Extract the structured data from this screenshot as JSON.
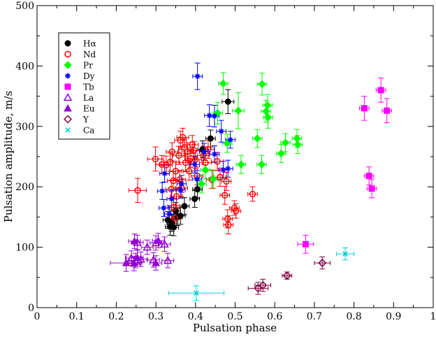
{
  "chart_data": {
    "type": "scatter",
    "xlabel": "Pulsation phase",
    "ylabel": "Pulsation amplitude, m/s",
    "xlim": [
      0,
      1
    ],
    "ylim": [
      0,
      500
    ],
    "xticks": [
      "0",
      "0.1",
      "0.2",
      "0.3",
      "0.4",
      "0.5",
      "0.6",
      "0.7",
      "0.8",
      "0.9",
      "1"
    ],
    "yticks": [
      "0",
      "100",
      "200",
      "300",
      "400",
      "500"
    ],
    "grid": false,
    "legend_position": "top-left",
    "series": [
      {
        "name": "Hα",
        "marker": "circle-filled",
        "color": "#000000",
        "errcolor": "#000000",
        "points": [
          {
            "x": 0.482,
            "y": 341,
            "ex": 0.015,
            "ey": 20
          },
          {
            "x": 0.438,
            "y": 280,
            "ex": 0.012,
            "ey": 14
          },
          {
            "x": 0.418,
            "y": 262,
            "ex": 0.012,
            "ey": 14
          },
          {
            "x": 0.398,
            "y": 180,
            "ex": 0.012,
            "ey": 14
          },
          {
            "x": 0.405,
            "y": 196,
            "ex": 0.012,
            "ey": 14
          },
          {
            "x": 0.372,
            "y": 168,
            "ex": 0.012,
            "ey": 14
          },
          {
            "x": 0.35,
            "y": 160,
            "ex": 0.012,
            "ey": 14
          },
          {
            "x": 0.355,
            "y": 150,
            "ex": 0.012,
            "ey": 14
          },
          {
            "x": 0.34,
            "y": 140,
            "ex": 0.012,
            "ey": 14
          },
          {
            "x": 0.336,
            "y": 134,
            "ex": 0.012,
            "ey": 14
          },
          {
            "x": 0.345,
            "y": 133,
            "ex": 0.012,
            "ey": 14
          },
          {
            "x": 0.362,
            "y": 152,
            "ex": 0.012,
            "ey": 14
          },
          {
            "x": 0.33,
            "y": 145,
            "ex": 0.012,
            "ey": 14
          }
        ]
      },
      {
        "name": "Nd",
        "marker": "circle-open",
        "color": "#ff0000",
        "errcolor": "#ff0000",
        "points": [
          {
            "x": 0.254,
            "y": 194,
            "ex": 0.022,
            "ey": 20
          },
          {
            "x": 0.299,
            "y": 246,
            "ex": 0.02,
            "ey": 20
          },
          {
            "x": 0.315,
            "y": 237,
            "ex": 0.015,
            "ey": 15
          },
          {
            "x": 0.326,
            "y": 236,
            "ex": 0.015,
            "ey": 15
          },
          {
            "x": 0.336,
            "y": 241,
            "ex": 0.015,
            "ey": 15
          },
          {
            "x": 0.341,
            "y": 258,
            "ex": 0.015,
            "ey": 15
          },
          {
            "x": 0.344,
            "y": 210,
            "ex": 0.015,
            "ey": 15
          },
          {
            "x": 0.35,
            "y": 226,
            "ex": 0.015,
            "ey": 15
          },
          {
            "x": 0.339,
            "y": 196,
            "ex": 0.015,
            "ey": 15
          },
          {
            "x": 0.358,
            "y": 252,
            "ex": 0.015,
            "ey": 15
          },
          {
            "x": 0.362,
            "y": 277,
            "ex": 0.015,
            "ey": 15
          },
          {
            "x": 0.368,
            "y": 282,
            "ex": 0.015,
            "ey": 15
          },
          {
            "x": 0.372,
            "y": 265,
            "ex": 0.015,
            "ey": 15
          },
          {
            "x": 0.375,
            "y": 240,
            "ex": 0.015,
            "ey": 15
          },
          {
            "x": 0.38,
            "y": 258,
            "ex": 0.015,
            "ey": 15
          },
          {
            "x": 0.384,
            "y": 226,
            "ex": 0.015,
            "ey": 15
          },
          {
            "x": 0.388,
            "y": 247,
            "ex": 0.015,
            "ey": 15
          },
          {
            "x": 0.392,
            "y": 270,
            "ex": 0.015,
            "ey": 15
          },
          {
            "x": 0.396,
            "y": 260,
            "ex": 0.015,
            "ey": 15
          },
          {
            "x": 0.4,
            "y": 245,
            "ex": 0.015,
            "ey": 15
          },
          {
            "x": 0.404,
            "y": 218,
            "ex": 0.015,
            "ey": 15
          },
          {
            "x": 0.36,
            "y": 212,
            "ex": 0.015,
            "ey": 15
          },
          {
            "x": 0.365,
            "y": 198,
            "ex": 0.015,
            "ey": 15
          },
          {
            "x": 0.352,
            "y": 184,
            "ex": 0.015,
            "ey": 15
          },
          {
            "x": 0.345,
            "y": 166,
            "ex": 0.015,
            "ey": 15
          },
          {
            "x": 0.348,
            "y": 148,
            "ex": 0.015,
            "ey": 15
          },
          {
            "x": 0.42,
            "y": 252,
            "ex": 0.015,
            "ey": 15
          },
          {
            "x": 0.425,
            "y": 240,
            "ex": 0.015,
            "ey": 15
          },
          {
            "x": 0.432,
            "y": 262,
            "ex": 0.015,
            "ey": 15
          },
          {
            "x": 0.442,
            "y": 212,
            "ex": 0.015,
            "ey": 15
          },
          {
            "x": 0.455,
            "y": 242,
            "ex": 0.015,
            "ey": 15
          },
          {
            "x": 0.462,
            "y": 216,
            "ex": 0.015,
            "ey": 15
          },
          {
            "x": 0.474,
            "y": 186,
            "ex": 0.012,
            "ey": 15
          },
          {
            "x": 0.478,
            "y": 209,
            "ex": 0.012,
            "ey": 15
          },
          {
            "x": 0.481,
            "y": 147,
            "ex": 0.012,
            "ey": 15
          },
          {
            "x": 0.483,
            "y": 137,
            "ex": 0.012,
            "ey": 15
          },
          {
            "x": 0.498,
            "y": 165,
            "ex": 0.012,
            "ey": 12
          },
          {
            "x": 0.502,
            "y": 160,
            "ex": 0.012,
            "ey": 12
          },
          {
            "x": 0.544,
            "y": 188,
            "ex": 0.012,
            "ey": 12
          }
        ]
      },
      {
        "name": "Pr",
        "marker": "diamond-filled",
        "color": "#00ff00",
        "errcolor": "#00ff00",
        "points": [
          {
            "x": 0.47,
            "y": 371,
            "ex": 0.012,
            "ey": 18
          },
          {
            "x": 0.568,
            "y": 370,
            "ex": 0.012,
            "ey": 18
          },
          {
            "x": 0.582,
            "y": 335,
            "ex": 0.012,
            "ey": 18
          },
          {
            "x": 0.578,
            "y": 325,
            "ex": 0.012,
            "ey": 18
          },
          {
            "x": 0.583,
            "y": 315,
            "ex": 0.012,
            "ey": 18
          },
          {
            "x": 0.508,
            "y": 326,
            "ex": 0.015,
            "ey": 30
          },
          {
            "x": 0.456,
            "y": 322,
            "ex": 0.012,
            "ey": 18
          },
          {
            "x": 0.556,
            "y": 280,
            "ex": 0.012,
            "ey": 15
          },
          {
            "x": 0.627,
            "y": 273,
            "ex": 0.012,
            "ey": 15
          },
          {
            "x": 0.656,
            "y": 280,
            "ex": 0.012,
            "ey": 15
          },
          {
            "x": 0.658,
            "y": 270,
            "ex": 0.012,
            "ey": 15
          },
          {
            "x": 0.616,
            "y": 255,
            "ex": 0.012,
            "ey": 15
          },
          {
            "x": 0.515,
            "y": 237,
            "ex": 0.012,
            "ey": 15
          },
          {
            "x": 0.567,
            "y": 237,
            "ex": 0.012,
            "ey": 15
          },
          {
            "x": 0.48,
            "y": 272,
            "ex": 0.012,
            "ey": 15
          },
          {
            "x": 0.445,
            "y": 213,
            "ex": 0.012,
            "ey": 15
          },
          {
            "x": 0.415,
            "y": 205,
            "ex": 0.012,
            "ey": 15
          },
          {
            "x": 0.425,
            "y": 228,
            "ex": 0.012,
            "ey": 15
          }
        ]
      },
      {
        "name": "Dy",
        "marker": "asterisk",
        "color": "#0000ff",
        "errcolor": "#0000ff",
        "points": [
          {
            "x": 0.405,
            "y": 383,
            "ex": 0.012,
            "ey": 22
          },
          {
            "x": 0.435,
            "y": 318,
            "ex": 0.012,
            "ey": 18
          },
          {
            "x": 0.448,
            "y": 317,
            "ex": 0.012,
            "ey": 18
          },
          {
            "x": 0.465,
            "y": 292,
            "ex": 0.012,
            "ey": 18
          },
          {
            "x": 0.488,
            "y": 278,
            "ex": 0.012,
            "ey": 14
          },
          {
            "x": 0.448,
            "y": 254,
            "ex": 0.012,
            "ey": 14
          },
          {
            "x": 0.422,
            "y": 258,
            "ex": 0.012,
            "ey": 14
          },
          {
            "x": 0.398,
            "y": 237,
            "ex": 0.012,
            "ey": 14
          },
          {
            "x": 0.404,
            "y": 213,
            "ex": 0.012,
            "ey": 14
          },
          {
            "x": 0.47,
            "y": 228,
            "ex": 0.012,
            "ey": 14
          },
          {
            "x": 0.482,
            "y": 230,
            "ex": 0.012,
            "ey": 14
          },
          {
            "x": 0.365,
            "y": 205,
            "ex": 0.012,
            "ey": 14
          },
          {
            "x": 0.362,
            "y": 195,
            "ex": 0.012,
            "ey": 14
          },
          {
            "x": 0.322,
            "y": 222,
            "ex": 0.012,
            "ey": 14
          },
          {
            "x": 0.316,
            "y": 193,
            "ex": 0.012,
            "ey": 14
          },
          {
            "x": 0.32,
            "y": 165,
            "ex": 0.012,
            "ey": 14
          },
          {
            "x": 0.334,
            "y": 155,
            "ex": 0.012,
            "ey": 14
          },
          {
            "x": 0.34,
            "y": 180,
            "ex": 0.012,
            "ey": 14
          }
        ]
      },
      {
        "name": "Tb",
        "marker": "square-filled",
        "color": "#ff00ff",
        "errcolor": "#ff00ff",
        "points": [
          {
            "x": 0.868,
            "y": 360,
            "ex": 0.012,
            "ey": 20
          },
          {
            "x": 0.826,
            "y": 330,
            "ex": 0.012,
            "ey": 20
          },
          {
            "x": 0.883,
            "y": 326,
            "ex": 0.012,
            "ey": 20
          },
          {
            "x": 0.838,
            "y": 218,
            "ex": 0.012,
            "ey": 15
          },
          {
            "x": 0.845,
            "y": 197,
            "ex": 0.012,
            "ey": 15
          },
          {
            "x": 0.678,
            "y": 105,
            "ex": 0.02,
            "ey": 15
          }
        ]
      },
      {
        "name": "La",
        "marker": "triangle-open",
        "color": "#9400d3",
        "errcolor": "#9400d3",
        "points": [
          {
            "x": 0.253,
            "y": 108,
            "ex": 0.015,
            "ey": 12
          },
          {
            "x": 0.278,
            "y": 100,
            "ex": 0.015,
            "ey": 12
          },
          {
            "x": 0.3,
            "y": 107,
            "ex": 0.015,
            "ey": 12
          },
          {
            "x": 0.322,
            "y": 105,
            "ex": 0.015,
            "ey": 12
          },
          {
            "x": 0.248,
            "y": 78,
            "ex": 0.015,
            "ey": 12
          },
          {
            "x": 0.262,
            "y": 80,
            "ex": 0.015,
            "ey": 12
          },
          {
            "x": 0.294,
            "y": 79,
            "ex": 0.015,
            "ey": 12
          },
          {
            "x": 0.33,
            "y": 78,
            "ex": 0.015,
            "ey": 12
          },
          {
            "x": 0.238,
            "y": 82,
            "ex": 0.015,
            "ey": 12
          }
        ]
      },
      {
        "name": "Eu",
        "marker": "triangle-filled",
        "color": "#9400d3",
        "errcolor": "#9400d3",
        "points": [
          {
            "x": 0.246,
            "y": 110,
            "ex": 0.015,
            "ey": 12
          },
          {
            "x": 0.306,
            "y": 111,
            "ex": 0.015,
            "ey": 12
          },
          {
            "x": 0.225,
            "y": 74,
            "ex": 0.04,
            "ey": 14
          },
          {
            "x": 0.245,
            "y": 73,
            "ex": 0.015,
            "ey": 12
          },
          {
            "x": 0.253,
            "y": 83,
            "ex": 0.015,
            "ey": 12
          },
          {
            "x": 0.3,
            "y": 74,
            "ex": 0.015,
            "ey": 12
          }
        ]
      },
      {
        "name": "Y",
        "marker": "diamond-open",
        "color": "#800040",
        "errcolor": "#800040",
        "points": [
          {
            "x": 0.72,
            "y": 74,
            "ex": 0.02,
            "ey": 10
          },
          {
            "x": 0.631,
            "y": 53,
            "ex": 0.012,
            "ey": 6
          },
          {
            "x": 0.57,
            "y": 37,
            "ex": 0.02,
            "ey": 10
          },
          {
            "x": 0.558,
            "y": 32,
            "ex": 0.025,
            "ey": 10
          }
        ]
      },
      {
        "name": "Ca",
        "marker": "cross",
        "color": "#00d0d0",
        "errcolor": "#00d0d0",
        "points": [
          {
            "x": 0.778,
            "y": 89,
            "ex": 0.022,
            "ey": 10
          },
          {
            "x": 0.402,
            "y": 24,
            "ex": 0.07,
            "ey": 12
          }
        ]
      }
    ]
  }
}
